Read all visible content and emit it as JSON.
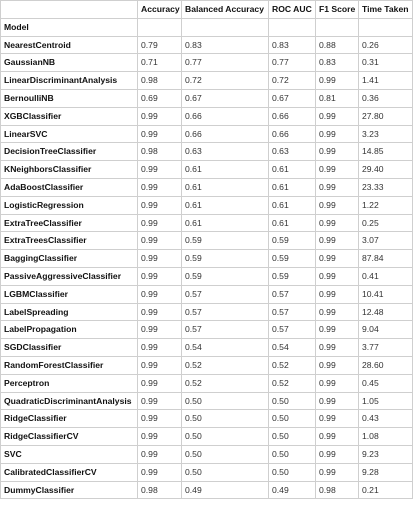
{
  "table": {
    "columns": [
      "",
      "Accuracy",
      "Balanced Accuracy",
      "ROC AUC",
      "F1 Score",
      "Time Taken"
    ],
    "index_name": "Model",
    "rows": [
      [
        "NearestCentroid",
        "0.79",
        "0.83",
        "0.83",
        "0.88",
        "0.26"
      ],
      [
        "GaussianNB",
        "0.71",
        "0.77",
        "0.77",
        "0.83",
        "0.31"
      ],
      [
        "LinearDiscriminantAnalysis",
        "0.98",
        "0.72",
        "0.72",
        "0.99",
        "1.41"
      ],
      [
        "BernoulliNB",
        "0.69",
        "0.67",
        "0.67",
        "0.81",
        "0.36"
      ],
      [
        "XGBClassifier",
        "0.99",
        "0.66",
        "0.66",
        "0.99",
        "27.80"
      ],
      [
        "LinearSVC",
        "0.99",
        "0.66",
        "0.66",
        "0.99",
        "3.23"
      ],
      [
        "DecisionTreeClassifier",
        "0.98",
        "0.63",
        "0.63",
        "0.99",
        "14.85"
      ],
      [
        "KNeighborsClassifier",
        "0.99",
        "0.61",
        "0.61",
        "0.99",
        "29.40"
      ],
      [
        "AdaBoostClassifier",
        "0.99",
        "0.61",
        "0.61",
        "0.99",
        "23.33"
      ],
      [
        "LogisticRegression",
        "0.99",
        "0.61",
        "0.61",
        "0.99",
        "1.22"
      ],
      [
        "ExtraTreeClassifier",
        "0.99",
        "0.61",
        "0.61",
        "0.99",
        "0.25"
      ],
      [
        "ExtraTreesClassifier",
        "0.99",
        "0.59",
        "0.59",
        "0.99",
        "3.07"
      ],
      [
        "BaggingClassifier",
        "0.99",
        "0.59",
        "0.59",
        "0.99",
        "87.84"
      ],
      [
        "PassiveAggressiveClassifier",
        "0.99",
        "0.59",
        "0.59",
        "0.99",
        "0.41"
      ],
      [
        "LGBMClassifier",
        "0.99",
        "0.57",
        "0.57",
        "0.99",
        "10.41"
      ],
      [
        "LabelSpreading",
        "0.99",
        "0.57",
        "0.57",
        "0.99",
        "12.48"
      ],
      [
        "LabelPropagation",
        "0.99",
        "0.57",
        "0.57",
        "0.99",
        "9.04"
      ],
      [
        "SGDClassifier",
        "0.99",
        "0.54",
        "0.54",
        "0.99",
        "3.77"
      ],
      [
        "RandomForestClassifier",
        "0.99",
        "0.52",
        "0.52",
        "0.99",
        "28.60"
      ],
      [
        "Perceptron",
        "0.99",
        "0.52",
        "0.52",
        "0.99",
        "0.45"
      ],
      [
        "QuadraticDiscriminantAnalysis",
        "0.99",
        "0.50",
        "0.50",
        "0.99",
        "1.05"
      ],
      [
        "RidgeClassifier",
        "0.99",
        "0.50",
        "0.50",
        "0.99",
        "0.43"
      ],
      [
        "RidgeClassifierCV",
        "0.99",
        "0.50",
        "0.50",
        "0.99",
        "1.08"
      ],
      [
        "SVC",
        "0.99",
        "0.50",
        "0.50",
        "0.99",
        "9.23"
      ],
      [
        "CalibratedClassifierCV",
        "0.99",
        "0.50",
        "0.50",
        "0.99",
        "9.28"
      ],
      [
        "DummyClassifier",
        "0.98",
        "0.49",
        "0.49",
        "0.98",
        "0.21"
      ]
    ]
  }
}
